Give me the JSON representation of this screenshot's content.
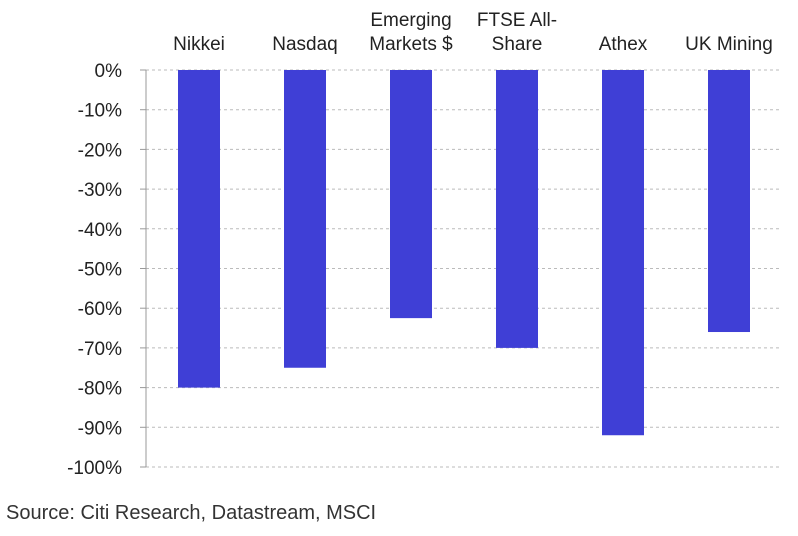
{
  "chart_data": {
    "type": "bar",
    "categories": [
      [
        "Nikkei"
      ],
      [
        "Nasdaq"
      ],
      [
        "Emerging",
        "Markets $"
      ],
      [
        "FTSE All-",
        "Share"
      ],
      [
        "Athex"
      ],
      [
        "UK Mining"
      ]
    ],
    "values": [
      -80,
      -75,
      -62.5,
      -70,
      -92,
      -66
    ],
    "ylim": [
      -100,
      0
    ],
    "yticks": [
      0,
      -10,
      -20,
      -30,
      -40,
      -50,
      -60,
      -70,
      -80,
      -90,
      -100
    ],
    "ytick_suffix": "%",
    "grid": true,
    "bar_color": "#3f3fd6",
    "grid_color": "#bbbbbb",
    "category_axis_position": "top",
    "title": "",
    "xlabel": "",
    "ylabel": ""
  },
  "source": "Source: Citi Research, Datastream, MSCI"
}
